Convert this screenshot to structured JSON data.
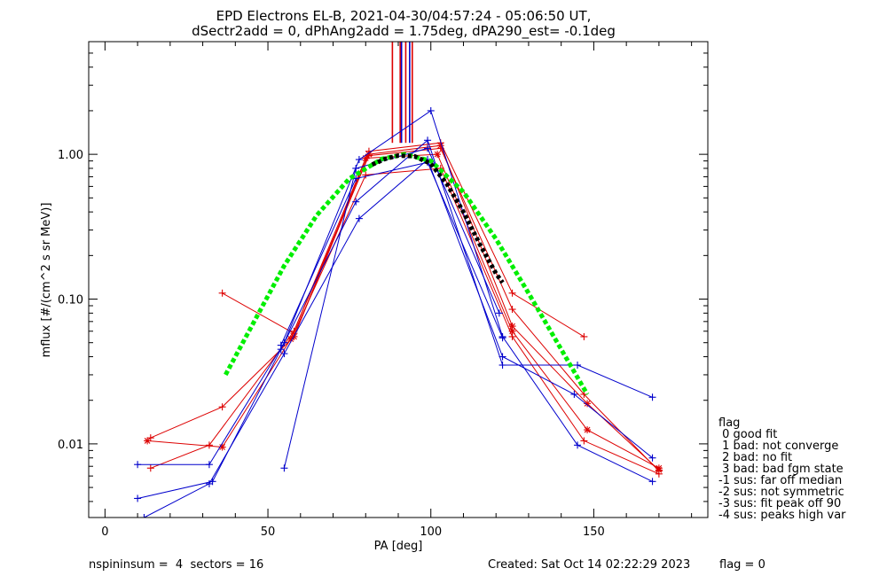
{
  "chart_data": {
    "type": "line",
    "title_line1": "EPD Electrons EL-B, 2021-04-30/04:57:24 - 05:06:50 UT,",
    "title_line2": "dSectr2add = 0, dPhAng2add = 1.75deg, dPA290_est=  -0.1deg",
    "xlabel": "PA [deg]",
    "ylabel": "mflux [#/(cm^2 s sr MeV)]",
    "xlim": [
      -5,
      185
    ],
    "ylim": [
      0.0031,
      6.0
    ],
    "yscale": "log",
    "x_ticks": [
      0,
      50,
      100,
      150
    ],
    "x_tick_labels": [
      "0",
      "50",
      "100",
      "150"
    ],
    "y_ticks": [
      0.01,
      0.1,
      1.0
    ],
    "y_tick_labels": [
      "0.01",
      "0.10",
      "1.00"
    ],
    "colors": {
      "red": "#dd0000",
      "blue": "#0000cc",
      "green": "#00ee00",
      "black": "#000000"
    },
    "series": [
      {
        "color": "#dd0000",
        "marker": "plus",
        "x": [
          14,
          36,
          58,
          81,
          103,
          125,
          147
        ],
        "y": [
          0.011,
          0.018,
          0.055,
          1.05,
          1.2,
          0.11,
          0.055
        ]
      },
      {
        "color": "#dd0000",
        "marker": "plus",
        "x": [
          14,
          32,
          58,
          81,
          103,
          125,
          147,
          170
        ],
        "y": [
          0.0068,
          0.0098,
          0.06,
          0.98,
          1.1,
          0.085,
          0.022,
          0.0065
        ]
      },
      {
        "color": "#dd0000",
        "marker": "star",
        "x": [
          13,
          36,
          57,
          80,
          102,
          125,
          148,
          170
        ],
        "y": [
          0.0105,
          0.0095,
          0.053,
          0.94,
          1.0,
          0.06,
          0.0125,
          0.0068
        ]
      },
      {
        "color": "#dd0000",
        "marker": "plus",
        "x": [
          36,
          58,
          80,
          103,
          125,
          147,
          170
        ],
        "y": [
          0.11,
          0.058,
          0.72,
          0.8,
          0.055,
          0.0105,
          0.0062
        ]
      },
      {
        "color": "#dd0000",
        "marker": "star",
        "x": [
          58,
          81,
          103,
          125,
          148,
          170
        ],
        "y": [
          0.055,
          1.0,
          1.15,
          0.065,
          0.019,
          0.0066
        ]
      },
      {
        "color": "#0000cc",
        "marker": "plus",
        "x": [
          10,
          32,
          55,
          78,
          100,
          122,
          145,
          168
        ],
        "y": [
          0.0072,
          0.0072,
          0.05,
          0.92,
          2.0,
          0.055,
          0.0098,
          0.0055
        ]
      },
      {
        "color": "#0000cc",
        "marker": "plus",
        "x": [
          10,
          33,
          54,
          77,
          99,
          122,
          145,
          168
        ],
        "y": [
          0.0042,
          0.0055,
          0.045,
          0.47,
          1.25,
          0.035,
          0.035,
          0.021
        ]
      },
      {
        "color": "#0000cc",
        "marker": "plus",
        "x": [
          12,
          32,
          55,
          78,
          99,
          122,
          144,
          168
        ],
        "y": [
          0.0031,
          0.0053,
          0.042,
          0.36,
          0.92,
          0.04,
          0.022,
          0.008
        ]
      },
      {
        "color": "#0000cc",
        "marker": "plus",
        "x": [
          55,
          77,
          99,
          121
        ],
        "y": [
          0.0068,
          0.8,
          1.1,
          0.08
        ]
      },
      {
        "color": "#0000cc",
        "marker": "plus",
        "x": [
          54,
          77,
          99,
          122
        ],
        "y": [
          0.048,
          0.68,
          0.88,
          0.054
        ]
      },
      {
        "color": "#00ee00",
        "style": "dashed-thick",
        "x": [
          37,
          45,
          55,
          65,
          75,
          85,
          92,
          100,
          110,
          120,
          130,
          140,
          148
        ],
        "y": [
          0.03,
          0.065,
          0.17,
          0.38,
          0.68,
          0.93,
          1.0,
          0.9,
          0.55,
          0.26,
          0.11,
          0.045,
          0.022
        ]
      },
      {
        "color": "#000000",
        "style": "dotted-thick",
        "x": [
          82,
          86,
          90,
          95,
          100,
          105,
          110,
          115,
          120,
          122
        ],
        "y": [
          0.85,
          0.93,
          0.98,
          0.97,
          0.86,
          0.62,
          0.4,
          0.24,
          0.15,
          0.13
        ]
      }
    ],
    "peak_markers": [
      {
        "color": "#dd0000",
        "x": 88.2
      },
      {
        "color": "#dd0000",
        "x": 90.6
      },
      {
        "color": "#0000cc",
        "x": 91.0
      },
      {
        "color": "#dd0000",
        "x": 92.3
      },
      {
        "color": "#0000cc",
        "x": 93.5
      },
      {
        "color": "#dd0000",
        "x": 94.3
      }
    ],
    "peak_marker_ymin": 1.2
  },
  "legend": {
    "title": "flag",
    "items": [
      " 0 good fit",
      " 1 bad: not converge",
      " 2 bad: no fit",
      " 3 bad: bad fgm state",
      "-1 sus: far off median",
      "-2 sus: not symmetric",
      "-3 sus: fit peak off 90",
      "-4 sus: peaks high var"
    ]
  },
  "footer": {
    "left": "nspininsum =  4  sectors = 16",
    "created": "Created: Sat Oct 14 02:22:29 2023",
    "flag": "flag = 0"
  }
}
